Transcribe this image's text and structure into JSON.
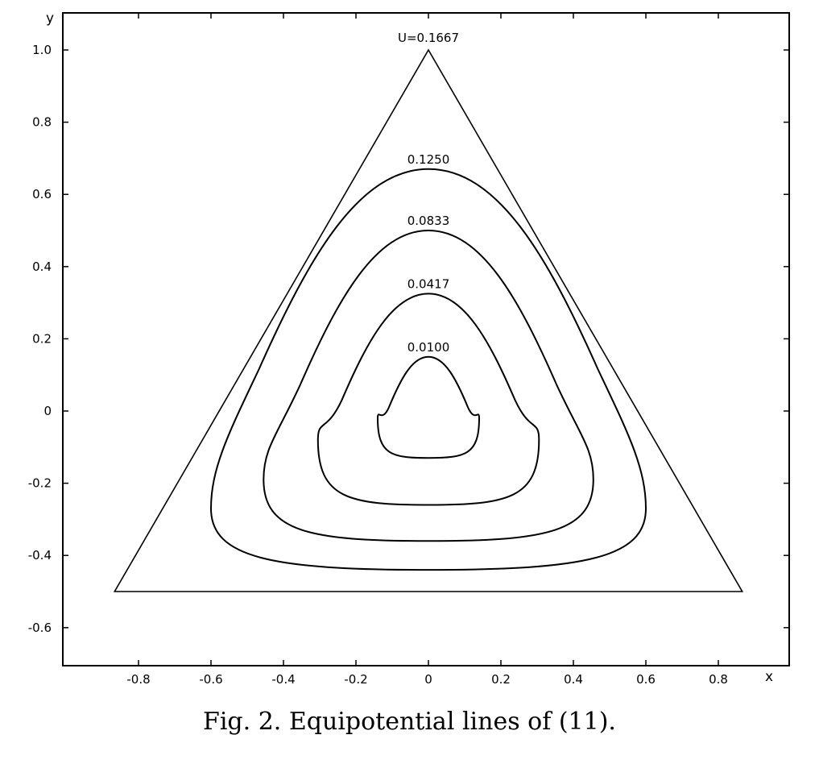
{
  "chart_data": {
    "type": "contour",
    "title": "",
    "xlabel": "x",
    "ylabel": "y",
    "xlim": [
      -1.0,
      1.0
    ],
    "ylim": [
      -0.7,
      1.1
    ],
    "x_ticks": [
      {
        "value": -0.8,
        "label": "-0.8"
      },
      {
        "value": -0.6,
        "label": "-0.6"
      },
      {
        "value": -0.4,
        "label": "-0.4"
      },
      {
        "value": -0.2,
        "label": "-0.2"
      },
      {
        "value": 0,
        "label": "0"
      },
      {
        "value": 0.2,
        "label": "0.2"
      },
      {
        "value": 0.4,
        "label": "0.4"
      },
      {
        "value": 0.6,
        "label": "0.6"
      },
      {
        "value": 0.8,
        "label": "0.8"
      }
    ],
    "y_ticks": [
      {
        "value": 1.0,
        "label": "1.0"
      },
      {
        "value": 0.8,
        "label": "0.8"
      },
      {
        "value": 0.6,
        "label": "0.6"
      },
      {
        "value": 0.4,
        "label": "0.4"
      },
      {
        "value": 0.2,
        "label": "0.2"
      },
      {
        "value": 0,
        "label": "0"
      },
      {
        "value": -0.2,
        "label": "-0.2"
      },
      {
        "value": -0.4,
        "label": "-0.4"
      },
      {
        "value": -0.6,
        "label": "-0.6"
      }
    ],
    "boundary": {
      "label": "U=0.1667",
      "vertices": [
        [
          0,
          1.0
        ],
        [
          -0.866,
          -0.5
        ],
        [
          0.866,
          -0.5
        ]
      ]
    },
    "contours": [
      {
        "label": "0.1250",
        "top": 0.67,
        "bottom": -0.44,
        "left": -0.6,
        "right": 0.6,
        "corner_y": -0.27
      },
      {
        "label": "0.0833",
        "top": 0.5,
        "bottom": -0.36,
        "left": -0.455,
        "right": 0.455,
        "corner_y": -0.19
      },
      {
        "label": "0.0417",
        "top": 0.325,
        "bottom": -0.26,
        "left": -0.305,
        "right": 0.305,
        "corner_y": -0.08
      },
      {
        "label": "0.0100",
        "top": 0.15,
        "bottom": -0.13,
        "left": -0.14,
        "right": 0.14,
        "corner_y": -0.02
      }
    ]
  },
  "caption": "Fig. 2. Equipotential lines of (11)."
}
